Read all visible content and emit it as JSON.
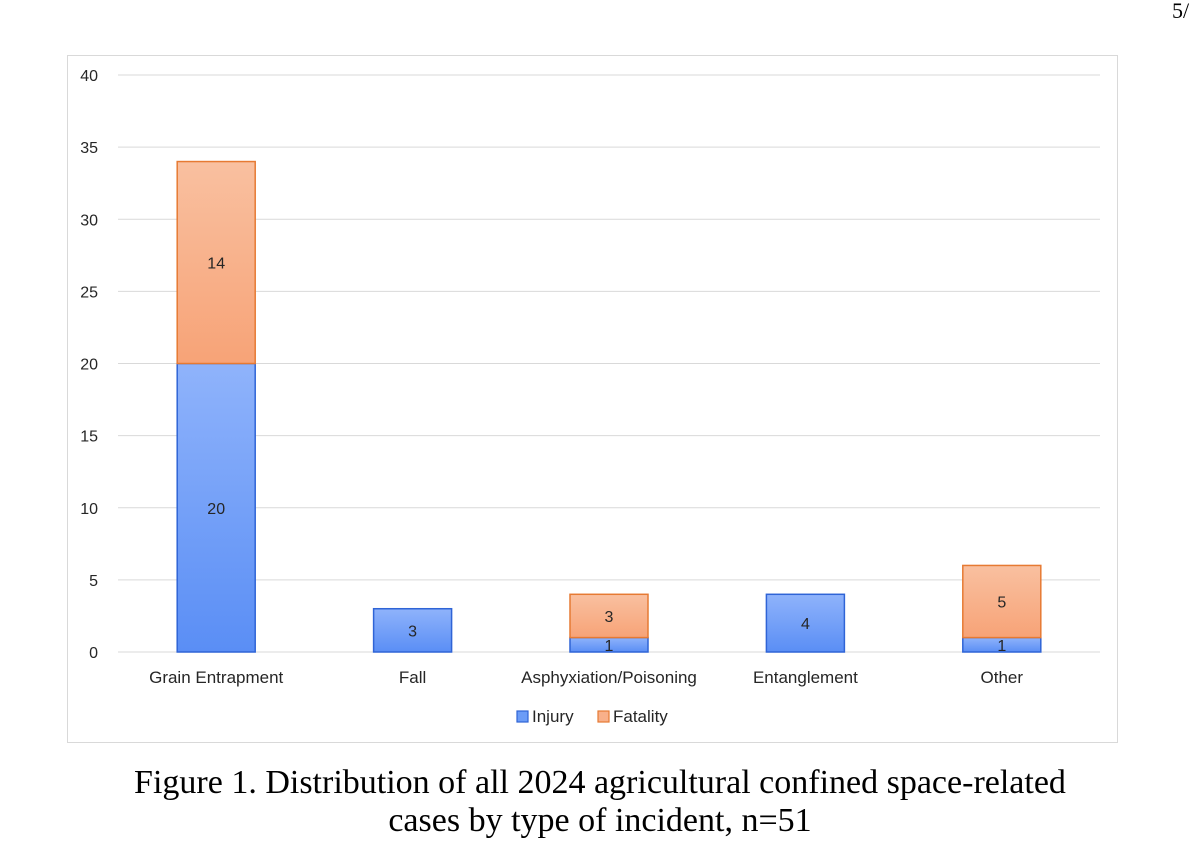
{
  "page": {
    "page_number": "5/"
  },
  "caption": {
    "line1": "Figure 1. Distribution of all 2024 agricultural confined space-related",
    "line2": "cases by type of incident, n=51"
  },
  "chart_data": {
    "type": "bar",
    "stacked": true,
    "categories": [
      "Grain Entrapment",
      "Fall",
      "Asphyxiation/Poisoning",
      "Entanglement",
      "Other"
    ],
    "series": [
      {
        "name": "Injury",
        "values": [
          20,
          3,
          1,
          4,
          1
        ],
        "color": "#6b9cf7",
        "stroke": "#2f64d6"
      },
      {
        "name": "Fatality",
        "values": [
          14,
          0,
          3,
          0,
          5
        ],
        "color": "#f8b08a",
        "stroke": "#e67a33"
      }
    ],
    "ylim": [
      0,
      40
    ],
    "yticks": [
      0,
      5,
      10,
      15,
      20,
      25,
      30,
      35,
      40
    ],
    "grid": true,
    "legend_position": "bottom",
    "title": "",
    "xlabel": "",
    "ylabel": ""
  }
}
